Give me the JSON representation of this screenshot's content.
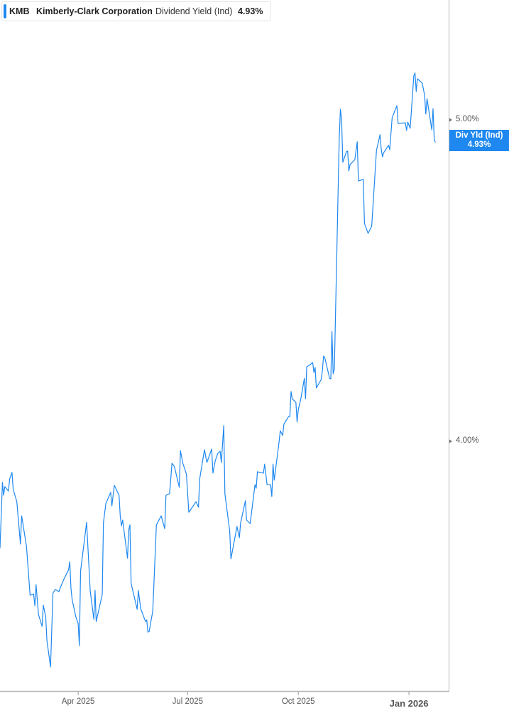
{
  "legend": {
    "ticker": "KMB",
    "company": "Kimberly-Clark Corporation",
    "metric": "Dividend Yield (Ind)",
    "value": "4.93%",
    "color": "#1e88f0"
  },
  "badge": {
    "label": "Div Yld (Ind)",
    "value": "4.93%",
    "color": "#1e88f0"
  },
  "chart_data": {
    "type": "line",
    "title": "",
    "xlabel": "",
    "ylabel": "",
    "xlim": [
      "2025-01-26",
      "2026-02-03"
    ],
    "ylim": [
      3.223,
      5.373
    ],
    "y_axis_position": "right",
    "grid": false,
    "x_ticks": [
      {
        "date": "2025-04-01",
        "label": "Apr 2025",
        "major": false
      },
      {
        "date": "2025-07-01",
        "label": "Jul 2025",
        "major": false
      },
      {
        "date": "2025-10-01",
        "label": "Oct 2025",
        "major": false
      },
      {
        "date": "2026-01-01",
        "label": "Jan 2026",
        "major": true
      }
    ],
    "y_ticks": [
      {
        "value": 5.0,
        "label": "5.00%"
      },
      {
        "value": 4.0,
        "label": "4.00%"
      }
    ],
    "series": [
      {
        "color": "#1e88f0",
        "points": [
          [
            "2025-01-26",
            3.667
          ],
          [
            "2025-01-28",
            3.872
          ],
          [
            "2025-01-29",
            3.832
          ],
          [
            "2025-01-30",
            3.859
          ],
          [
            "2025-02-02",
            3.845
          ],
          [
            "2025-02-03",
            3.883
          ],
          [
            "2025-02-05",
            3.903
          ],
          [
            "2025-02-06",
            3.85
          ],
          [
            "2025-02-09",
            3.812
          ],
          [
            "2025-02-12",
            3.68
          ],
          [
            "2025-02-13",
            3.768
          ],
          [
            "2025-02-17",
            3.673
          ],
          [
            "2025-02-20",
            3.521
          ],
          [
            "2025-02-23",
            3.525
          ],
          [
            "2025-02-24",
            3.488
          ],
          [
            "2025-02-25",
            3.554
          ],
          [
            "2025-02-27",
            3.461
          ],
          [
            "2025-03-02",
            3.424
          ],
          [
            "2025-03-03",
            3.49
          ],
          [
            "2025-03-05",
            3.453
          ],
          [
            "2025-03-06",
            3.38
          ],
          [
            "2025-03-09",
            3.298
          ],
          [
            "2025-03-11",
            3.528
          ],
          [
            "2025-03-13",
            3.539
          ],
          [
            "2025-03-16",
            3.532
          ],
          [
            "2025-03-17",
            3.543
          ],
          [
            "2025-03-20",
            3.57
          ],
          [
            "2025-03-24",
            3.6
          ],
          [
            "2025-03-25",
            3.625
          ],
          [
            "2025-03-26",
            3.541
          ],
          [
            "2025-03-27",
            3.506
          ],
          [
            "2025-03-30",
            3.455
          ],
          [
            "2025-04-01",
            3.433
          ],
          [
            "2025-04-02",
            3.364
          ],
          [
            "2025-04-03",
            3.596
          ],
          [
            "2025-04-08",
            3.748
          ],
          [
            "2025-04-11",
            3.534
          ],
          [
            "2025-04-14",
            3.446
          ],
          [
            "2025-04-15",
            3.536
          ],
          [
            "2025-04-16",
            3.439
          ],
          [
            "2025-04-21",
            3.523
          ],
          [
            "2025-04-22",
            3.746
          ],
          [
            "2025-04-24",
            3.806
          ],
          [
            "2025-04-28",
            3.841
          ],
          [
            "2025-04-29",
            3.799
          ],
          [
            "2025-05-01",
            3.863
          ],
          [
            "2025-05-05",
            3.832
          ],
          [
            "2025-05-06",
            3.766
          ],
          [
            "2025-05-07",
            3.737
          ],
          [
            "2025-05-08",
            3.755
          ],
          [
            "2025-05-12",
            3.636
          ],
          [
            "2025-05-13",
            3.724
          ],
          [
            "2025-05-14",
            3.74
          ],
          [
            "2025-05-15",
            3.558
          ],
          [
            "2025-05-20",
            3.477
          ],
          [
            "2025-05-21",
            3.536
          ],
          [
            "2025-05-23",
            3.479
          ],
          [
            "2025-05-27",
            3.439
          ],
          [
            "2025-05-28",
            3.444
          ],
          [
            "2025-05-29",
            3.406
          ],
          [
            "2025-05-30",
            3.408
          ],
          [
            "2025-06-02",
            3.472
          ],
          [
            "2025-06-05",
            3.74
          ],
          [
            "2025-06-09",
            3.768
          ],
          [
            "2025-06-12",
            3.728
          ],
          [
            "2025-06-13",
            3.832
          ],
          [
            "2025-06-16",
            3.837
          ],
          [
            "2025-06-18",
            3.932
          ],
          [
            "2025-06-20",
            3.921
          ],
          [
            "2025-06-24",
            3.857
          ],
          [
            "2025-06-25",
            3.971
          ],
          [
            "2025-06-27",
            3.932
          ],
          [
            "2025-06-30",
            3.898
          ],
          [
            "2025-07-02",
            3.779
          ],
          [
            "2025-07-08",
            3.812
          ],
          [
            "2025-07-10",
            3.795
          ],
          [
            "2025-07-11",
            3.883
          ],
          [
            "2025-07-15",
            3.974
          ],
          [
            "2025-07-17",
            3.934
          ],
          [
            "2025-07-21",
            3.976
          ],
          [
            "2025-07-22",
            3.901
          ],
          [
            "2025-07-24",
            3.94
          ],
          [
            "2025-07-26",
            3.962
          ],
          [
            "2025-07-28",
            3.969
          ],
          [
            "2025-07-29",
            3.934
          ],
          [
            "2025-07-31",
            4.049
          ],
          [
            "2025-08-01",
            3.837
          ],
          [
            "2025-08-05",
            3.72
          ],
          [
            "2025-08-06",
            3.634
          ],
          [
            "2025-08-11",
            3.735
          ],
          [
            "2025-08-13",
            3.7
          ],
          [
            "2025-08-14",
            3.746
          ],
          [
            "2025-08-18",
            3.815
          ],
          [
            "2025-08-19",
            3.755
          ],
          [
            "2025-08-22",
            3.744
          ],
          [
            "2025-08-26",
            3.865
          ],
          [
            "2025-08-27",
            3.854
          ],
          [
            "2025-08-28",
            3.905
          ],
          [
            "2025-09-02",
            3.901
          ],
          [
            "2025-09-03",
            3.929
          ],
          [
            "2025-09-05",
            3.865
          ],
          [
            "2025-09-08",
            3.865
          ],
          [
            "2025-09-09",
            3.828
          ],
          [
            "2025-09-10",
            3.929
          ],
          [
            "2025-09-11",
            3.879
          ],
          [
            "2025-09-15",
            3.998
          ],
          [
            "2025-09-16",
            4.033
          ],
          [
            "2025-09-18",
            4.018
          ],
          [
            "2025-09-19",
            4.053
          ],
          [
            "2025-09-23",
            4.077
          ],
          [
            "2025-09-24",
            4.077
          ],
          [
            "2025-09-25",
            4.155
          ],
          [
            "2025-09-26",
            4.132
          ],
          [
            "2025-09-29",
            4.121
          ],
          [
            "2025-09-30",
            4.06
          ],
          [
            "2025-10-01",
            4.099
          ],
          [
            "2025-10-03",
            4.13
          ],
          [
            "2025-10-06",
            4.196
          ],
          [
            "2025-10-07",
            4.132
          ],
          [
            "2025-10-08",
            4.232
          ],
          [
            "2025-10-10",
            4.236
          ],
          [
            "2025-10-13",
            4.245
          ],
          [
            "2025-10-14",
            4.214
          ],
          [
            "2025-10-15",
            4.23
          ],
          [
            "2025-10-16",
            4.166
          ],
          [
            "2025-10-20",
            4.192
          ],
          [
            "2025-10-21",
            4.219
          ],
          [
            "2025-10-22",
            4.265
          ],
          [
            "2025-10-23",
            4.26
          ],
          [
            "2025-10-27",
            4.196
          ],
          [
            "2025-10-28",
            4.194
          ],
          [
            "2025-10-29",
            4.342
          ],
          [
            "2025-10-30",
            4.21
          ],
          [
            "2025-10-31",
            4.225
          ],
          [
            "2025-11-04",
            4.938
          ],
          [
            "2025-11-05",
            5.033
          ],
          [
            "2025-11-06",
            5.0
          ],
          [
            "2025-11-07",
            4.868
          ],
          [
            "2025-11-10",
            4.901
          ],
          [
            "2025-11-11",
            4.903
          ],
          [
            "2025-11-12",
            4.841
          ],
          [
            "2025-11-13",
            4.861
          ],
          [
            "2025-11-17",
            4.876
          ],
          [
            "2025-11-19",
            4.932
          ],
          [
            "2025-11-20",
            4.81
          ],
          [
            "2025-11-24",
            4.815
          ],
          [
            "2025-11-25",
            4.678
          ],
          [
            "2025-11-28",
            4.647
          ],
          [
            "2025-12-01",
            4.669
          ],
          [
            "2025-12-05",
            4.905
          ],
          [
            "2025-12-08",
            4.954
          ],
          [
            "2025-12-09",
            4.907
          ],
          [
            "2025-12-10",
            4.885
          ],
          [
            "2025-12-11",
            4.898
          ],
          [
            "2025-12-15",
            4.921
          ],
          [
            "2025-12-16",
            4.907
          ],
          [
            "2025-12-18",
            5.007
          ],
          [
            "2025-12-22",
            5.044
          ],
          [
            "2025-12-23",
            4.989
          ],
          [
            "2025-12-29",
            4.991
          ],
          [
            "2025-12-30",
            4.967
          ],
          [
            "2025-12-31",
            4.993
          ],
          [
            "2026-01-02",
            4.974
          ],
          [
            "2026-01-05",
            5.137
          ],
          [
            "2026-01-06",
            5.146
          ],
          [
            "2026-01-07",
            5.088
          ],
          [
            "2026-01-08",
            5.128
          ],
          [
            "2026-01-12",
            5.115
          ],
          [
            "2026-01-14",
            5.077
          ],
          [
            "2026-01-15",
            5.018
          ],
          [
            "2026-01-16",
            5.066
          ],
          [
            "2026-01-20",
            4.969
          ],
          [
            "2026-01-21",
            5.035
          ],
          [
            "2026-01-22",
            4.938
          ],
          [
            "2026-01-23",
            4.93
          ]
        ]
      }
    ]
  }
}
